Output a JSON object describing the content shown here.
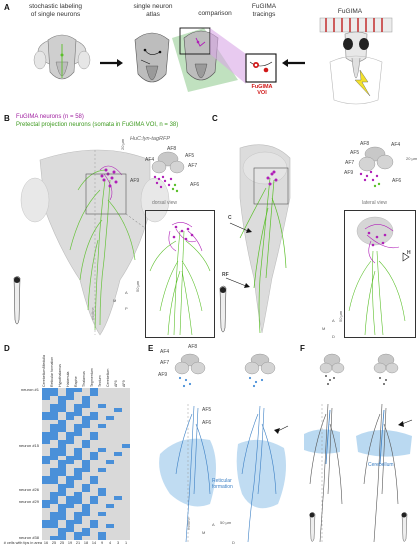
{
  "panels": {
    "A": {
      "letter": "A",
      "headers": [
        "stochastic labeling\nof single neurons",
        "single neuron\natlas",
        "comparison",
        "FuGIMA\ntracings",
        "FuGIMA"
      ],
      "voi_label": "FuGIMA\nVOI"
    },
    "B": {
      "letter": "B",
      "legend_magenta": "FuGIMA neurons (n = 58)",
      "legend_green": "Pretectal projection neurons (somata in FuGIMA VOI, n = 38)",
      "line_label": "HuC:lyn-tagRFP",
      "inset_label": "dorsal view",
      "af_labels": [
        "AF8",
        "AF4",
        "AF5",
        "AF7",
        "AF9",
        "AF6"
      ],
      "scale": "20 µm",
      "scale2": "50 µm",
      "midline": "midline",
      "axis": [
        "A",
        "M",
        "P",
        "D"
      ]
    },
    "C": {
      "letter": "C",
      "af_labels": [
        "AF8",
        "AF4",
        "AF5",
        "AF7",
        "AF9",
        "AF6"
      ],
      "inset_label": "lateral view",
      "labels": [
        "C",
        "RF",
        "H"
      ],
      "scale": "20 µm",
      "scale2": "50 µm",
      "axis": [
        "A",
        "M",
        "D"
      ]
    },
    "D": {
      "letter": "D",
      "columns": [
        "Cerebellum/Medulla",
        "Reticular formation",
        "Hypothalamus",
        "Habenula",
        "Raphe",
        "Thalamus",
        "Tegmentum",
        "Tectum",
        "Cerebellum",
        "AF6",
        "AF9"
      ],
      "row_labels": [
        {
          "label": "neuron #1",
          "row": 0
        },
        {
          "label": "neuron #15",
          "row": 14
        },
        {
          "label": "neuron #26",
          "row": 25
        },
        {
          "label": "neuron #29",
          "row": 28
        },
        {
          "label": "neuron #38",
          "row": 37
        }
      ],
      "counts_label": "# cells with tips in area",
      "counts": [
        "16",
        "25",
        "25",
        "19",
        "21",
        "18",
        "14",
        "9",
        "4",
        "3",
        "1"
      ],
      "color_on": "#4a90d9",
      "color_off": "#d9d9d9"
    },
    "E": {
      "letter": "E",
      "af_labels": [
        "AF4",
        "AF8",
        "AF5",
        "AF7",
        "AF9",
        "AF6"
      ],
      "region_label": "Reticular\nformation",
      "midline": "midline",
      "scale": "50 µm",
      "axis": [
        "A",
        "M",
        "D"
      ]
    },
    "F": {
      "letter": "F",
      "region_label": "Cerebellum"
    }
  },
  "colors": {
    "magenta": "#b020b8",
    "green": "#5bbf2a",
    "blue": "#4a90d9",
    "gray": "#c9c9c9"
  }
}
